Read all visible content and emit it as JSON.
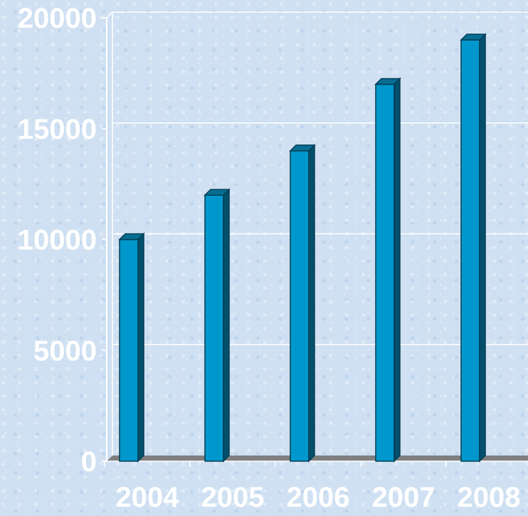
{
  "chart_data": {
    "type": "bar",
    "title": "",
    "xlabel": "",
    "ylabel": "",
    "categories": [
      "2004",
      "2005",
      "2006",
      "2007",
      "2008"
    ],
    "values": [
      10000,
      12000,
      14000,
      17000,
      19000
    ],
    "ylim": [
      0,
      20000
    ],
    "yticks": [
      0,
      5000,
      10000,
      15000,
      20000
    ],
    "ytick_labels": [
      "0",
      "5000",
      "10000",
      "15000",
      "20000"
    ],
    "grid": true,
    "style": "3d",
    "colors": {
      "bar_front": "#0098cc",
      "bar_side": "#044f6c",
      "bar_top": "#066e92",
      "floor": "#7f7f7f",
      "axis": "#ffffff",
      "label": "#ffffff",
      "background": "#cfe0f2"
    }
  }
}
